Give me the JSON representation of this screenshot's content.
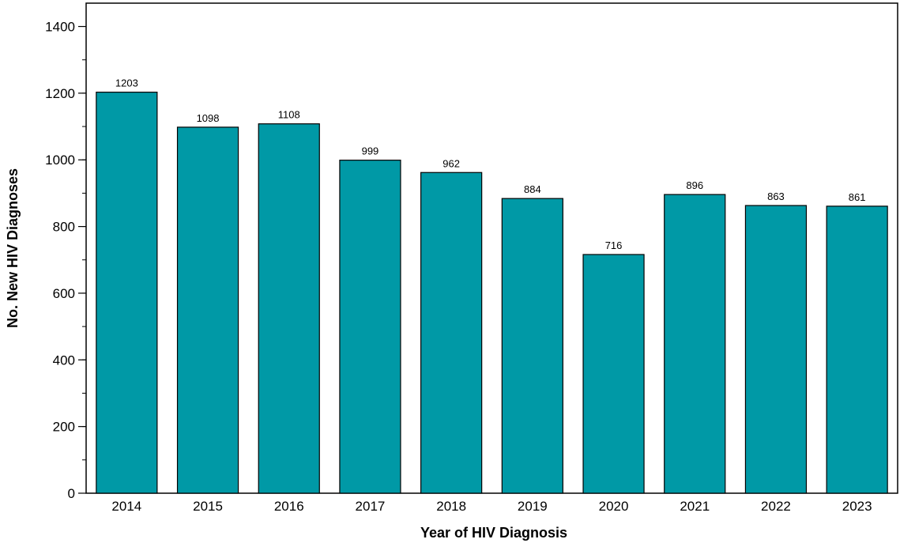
{
  "chart_data": {
    "type": "bar",
    "title": "",
    "xlabel": "Year of HIV Diagnosis",
    "ylabel": "No. New HIV Diagnoses",
    "categories": [
      "2014",
      "2015",
      "2016",
      "2017",
      "2018",
      "2019",
      "2020",
      "2021",
      "2022",
      "2023"
    ],
    "values": [
      1203,
      1098,
      1108,
      999,
      962,
      884,
      716,
      896,
      863,
      861
    ],
    "data_labels": [
      "1203",
      "1098",
      "1108",
      "999",
      "962",
      "884",
      "716",
      "896",
      "863",
      "861"
    ],
    "ylim": [
      0,
      1470
    ],
    "yticks": [
      0,
      200,
      400,
      600,
      800,
      1000,
      1200,
      1400
    ],
    "ytick_labels": [
      "0",
      "200",
      "400",
      "600",
      "800",
      "1000",
      "1200",
      "1400"
    ],
    "minor_ytick_step": 100,
    "bar_color": "#0099a6",
    "bar_edge_color": "#000000",
    "grid": false,
    "legend": "none"
  }
}
